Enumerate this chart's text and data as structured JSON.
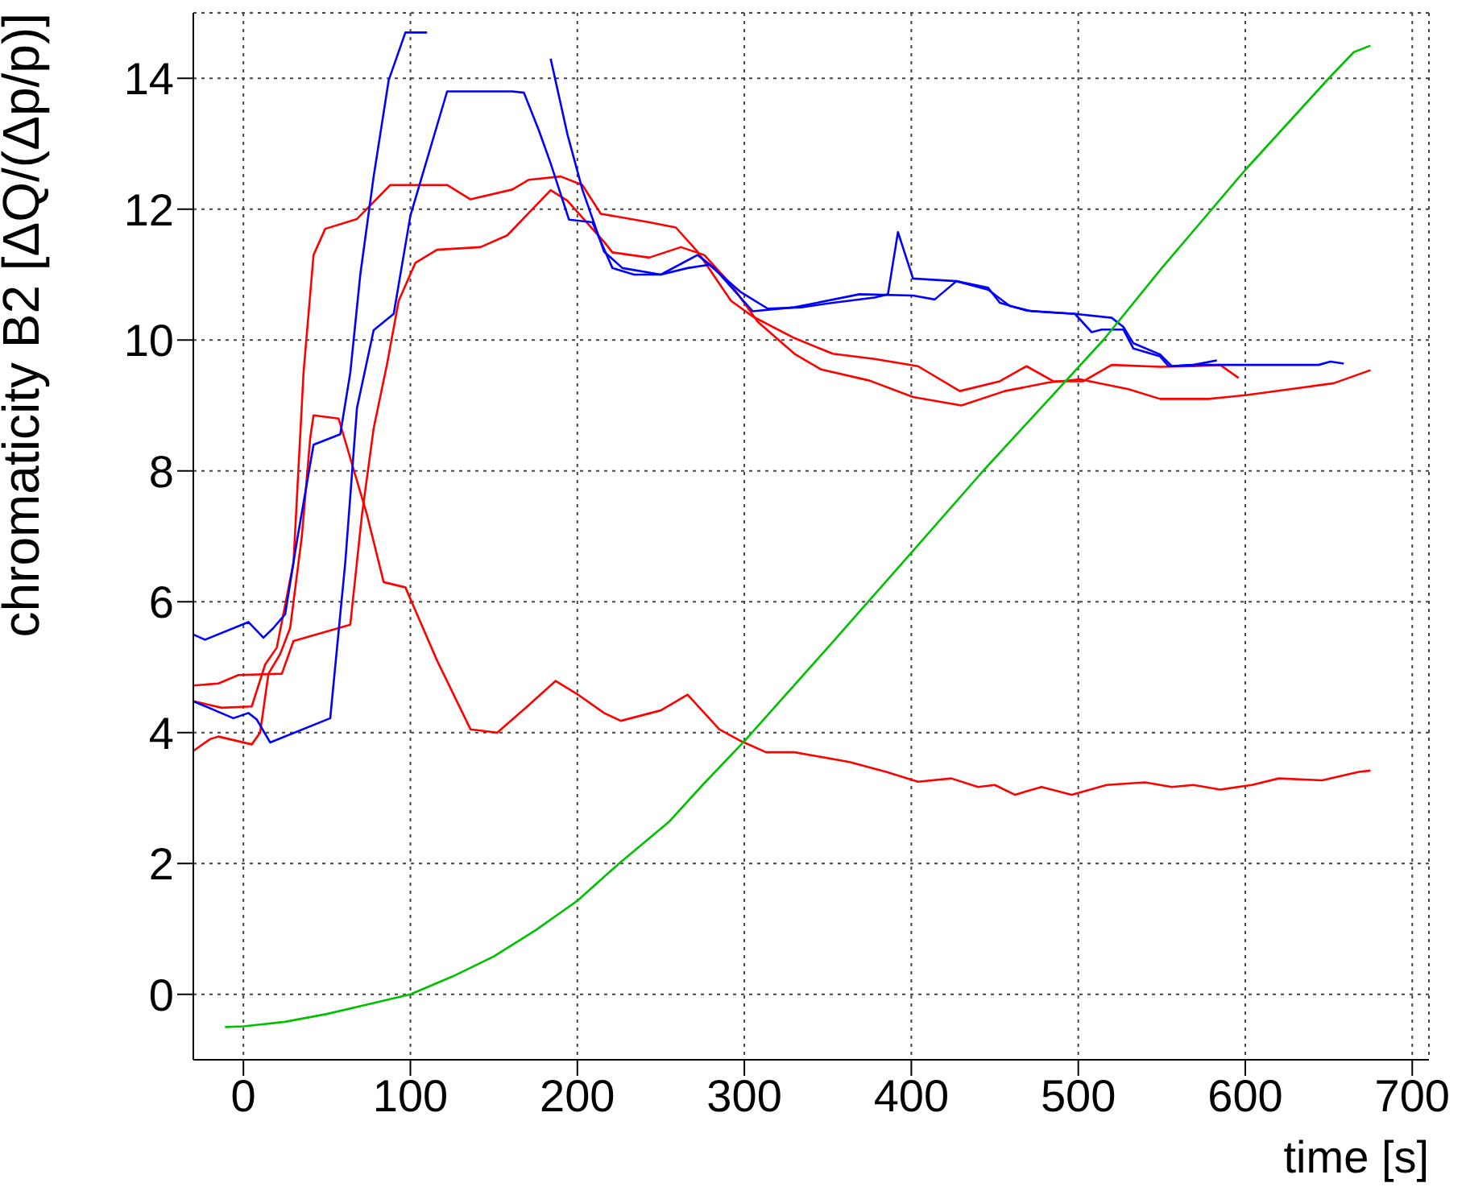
{
  "chart_data": {
    "type": "line",
    "xlabel": "time [s]",
    "ylabel": "chromaticity B2 [ΔQ/(Δp/p)]",
    "xlim": [
      -30,
      710
    ],
    "ylim": [
      -1,
      15
    ],
    "xticks": [
      0,
      100,
      200,
      300,
      400,
      500,
      600,
      700
    ],
    "yticks": [
      0,
      2,
      4,
      6,
      8,
      10,
      12,
      14
    ],
    "grid": true,
    "marker": "none",
    "series": [
      {
        "color": "#ff0000",
        "x": [
          -30,
          -20,
          -15,
          5,
          10,
          15,
          22,
          28,
          35,
          40,
          42,
          57,
          74,
          84,
          97,
          116,
          136,
          152,
          170,
          187,
          201,
          216,
          226,
          250,
          266,
          285,
          298,
          313,
          330,
          363,
          385,
          404,
          424,
          440,
          450,
          462,
          478,
          496,
          517,
          540,
          556,
          569,
          585,
          604,
          620,
          646,
          668,
          675
        ],
        "values": [
          3.72,
          3.9,
          3.94,
          3.82,
          4.0,
          4.9,
          5.2,
          5.6,
          7.0,
          8.5,
          8.85,
          8.8,
          7.33,
          6.3,
          6.22,
          5.1,
          4.05,
          4.0,
          4.4,
          4.79,
          4.57,
          4.3,
          4.18,
          4.34,
          4.58,
          4.05,
          3.87,
          3.7,
          3.7,
          3.55,
          3.4,
          3.25,
          3.3,
          3.17,
          3.2,
          3.05,
          3.17,
          3.05,
          3.2,
          3.24,
          3.17,
          3.2,
          3.13,
          3.2,
          3.3,
          3.27,
          3.4,
          3.42
        ]
      },
      {
        "color": "#ff0000",
        "x": [
          -30,
          -13,
          5,
          13,
          20,
          30,
          36,
          42,
          49,
          68,
          88,
          122,
          136,
          161,
          171,
          190,
          203,
          214,
          243,
          259,
          272,
          292,
          305,
          330,
          353,
          378,
          404,
          429,
          453,
          469,
          485,
          503,
          520,
          549,
          569,
          585,
          596
        ],
        "values": [
          4.48,
          4.38,
          4.4,
          5.04,
          5.3,
          6.6,
          9.5,
          11.3,
          11.7,
          11.85,
          12.37,
          12.37,
          12.15,
          12.3,
          12.45,
          12.5,
          12.37,
          11.93,
          11.8,
          11.72,
          11.35,
          10.6,
          10.36,
          10.03,
          9.79,
          9.71,
          9.6,
          9.22,
          9.37,
          9.6,
          9.37,
          9.37,
          9.62,
          9.59,
          9.6,
          9.62,
          9.42
        ]
      },
      {
        "color": "#ff0000",
        "x": [
          -30,
          -15,
          -3,
          23,
          30,
          64,
          71,
          78,
          86,
          93,
          103,
          116,
          142,
          158,
          184,
          194,
          216,
          221,
          243,
          262,
          276,
          292,
          308,
          330,
          346,
          375,
          401,
          430,
          456,
          482,
          501,
          530,
          549,
          578,
          601,
          627,
          653,
          675
        ],
        "values": [
          4.72,
          4.75,
          4.88,
          4.9,
          5.4,
          5.65,
          7.33,
          8.65,
          9.63,
          10.6,
          11.18,
          11.38,
          11.42,
          11.6,
          12.29,
          12.13,
          11.5,
          11.34,
          11.26,
          11.42,
          11.3,
          10.85,
          10.28,
          9.79,
          9.55,
          9.38,
          9.13,
          9.0,
          9.22,
          9.35,
          9.4,
          9.25,
          9.1,
          9.1,
          9.16,
          9.25,
          9.34,
          9.54
        ]
      },
      {
        "color": "#0000ff",
        "x": [
          -30,
          -23,
          3,
          12,
          18,
          25,
          32,
          42,
          58,
          64,
          70,
          78,
          87,
          97,
          110,
          121,
          150,
          177,
          184,
          194,
          203,
          216,
          227,
          250,
          266,
          279,
          298,
          314,
          334,
          353,
          378,
          386,
          392,
          401,
          427,
          446,
          453,
          469,
          498,
          508,
          514,
          527,
          533,
          549,
          554,
          569,
          601,
          644,
          651,
          659
        ],
        "values": [
          5.5,
          5.42,
          5.69,
          5.45,
          5.6,
          5.81,
          6.92,
          8.4,
          8.56,
          9.5,
          11.0,
          12.5,
          13.97,
          14.7,
          14.7,
          null,
          null,
          null,
          14.3,
          13.15,
          12.3,
          11.35,
          11.1,
          11.0,
          11.1,
          11.15,
          10.73,
          10.48,
          10.5,
          10.57,
          10.65,
          10.7,
          11.65,
          10.94,
          10.9,
          10.8,
          10.57,
          10.45,
          10.4,
          10.12,
          10.16,
          10.16,
          9.87,
          9.75,
          9.6,
          9.62,
          9.62,
          9.62,
          9.67,
          9.64
        ]
      },
      {
        "color": "#0000ff",
        "x": [
          -30,
          -6,
          3,
          8,
          16,
          52,
          61,
          68,
          78,
          90,
          100,
          122,
          161,
          168,
          177,
          184,
          195,
          209,
          221,
          234,
          250,
          272,
          282,
          305,
          330,
          369,
          401,
          414,
          427,
          446,
          459,
          472,
          498,
          520,
          527,
          533,
          549,
          556,
          569,
          583
        ],
        "values": [
          4.48,
          4.22,
          4.3,
          4.2,
          3.85,
          4.22,
          6.6,
          8.96,
          10.15,
          10.4,
          11.9,
          13.8,
          13.8,
          13.78,
          13.2,
          12.7,
          11.84,
          11.8,
          11.1,
          11.0,
          11.0,
          11.3,
          11.1,
          10.44,
          10.5,
          10.7,
          10.68,
          10.62,
          10.9,
          10.77,
          10.52,
          10.44,
          10.4,
          10.34,
          10.2,
          9.95,
          9.78,
          9.6,
          9.62,
          9.69
        ]
      },
      {
        "color": "#00c000",
        "x": [
          -11,
          0,
          25,
          50,
          75,
          100,
          125,
          150,
          175,
          200,
          225,
          255,
          275,
          300,
          350,
          400,
          443,
          470,
          515,
          550,
          580,
          600,
          650,
          665,
          675
        ],
        "values": [
          -0.5,
          -0.49,
          -0.42,
          -0.3,
          -0.15,
          0,
          0.27,
          0.58,
          0.98,
          1.43,
          2.0,
          2.64,
          3.2,
          3.87,
          5.3,
          6.75,
          8.0,
          8.75,
          10.0,
          11.1,
          12.0,
          12.6,
          14.0,
          14.4,
          14.5
        ]
      }
    ]
  }
}
